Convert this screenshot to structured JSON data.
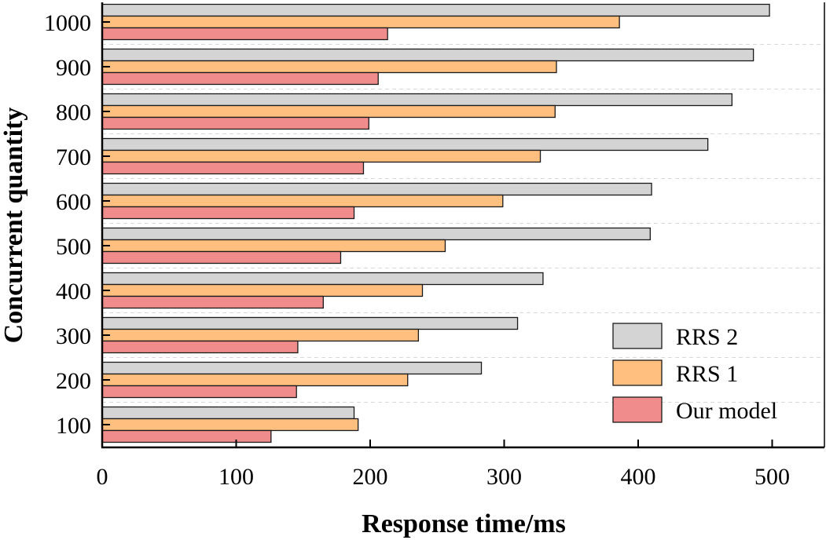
{
  "chart_data": {
    "type": "bar",
    "orientation": "horizontal",
    "title": "",
    "xlabel": "Response time/ms",
    "ylabel": "Concurrent quantity",
    "xlim": [
      0,
      540
    ],
    "xticks": [
      0,
      100,
      200,
      300,
      400,
      500
    ],
    "categories": [
      "100",
      "200",
      "300",
      "400",
      "500",
      "600",
      "700",
      "800",
      "900",
      "1000"
    ],
    "series": [
      {
        "name": "RRS 2",
        "color": "#d4d4d4",
        "values": [
          188,
          283,
          310,
          329,
          409,
          410,
          452,
          470,
          486,
          498
        ]
      },
      {
        "name": "RRS 1",
        "color": "#ffbf7f",
        "values": [
          191,
          228,
          236,
          239,
          256,
          299,
          327,
          338,
          339,
          386
        ]
      },
      {
        "name": "Our model",
        "color": "#f08c8c",
        "values": [
          126,
          145,
          146,
          165,
          178,
          188,
          195,
          199,
          206,
          213
        ]
      }
    ],
    "legend": {
      "placement": "bottom-right",
      "order": [
        "RRS 2",
        "RRS 1",
        "Our model"
      ]
    },
    "grid": {
      "horizontal": "dashed",
      "vertical": false
    }
  }
}
